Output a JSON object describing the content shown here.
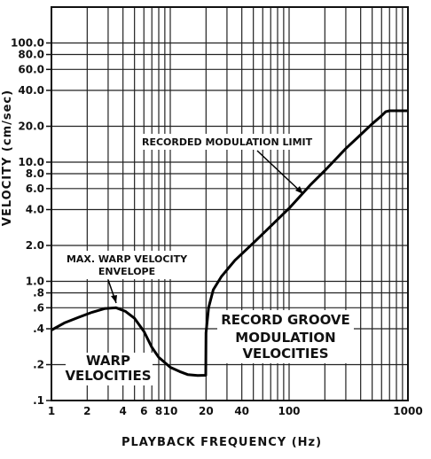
{
  "chart_data": {
    "type": "line",
    "xscale": "log",
    "yscale": "log",
    "xlim": [
      1,
      1000
    ],
    "ylim": [
      0.1,
      200
    ],
    "grid": true,
    "xlabel": "PLAYBACK FREQUENCY (Hz)",
    "ylabel": "VELOCITY (cm/sec)",
    "x_ticks": [
      1,
      2,
      4,
      6,
      8,
      10,
      20,
      40,
      100,
      1000
    ],
    "x_tick_labels": [
      "1",
      "2",
      "4",
      "6",
      "8",
      "10",
      "20",
      "40",
      "100",
      "1000"
    ],
    "y_ticks": [
      0.1,
      0.2,
      0.4,
      0.6,
      0.8,
      1.0,
      2.0,
      4.0,
      6.0,
      8.0,
      10.0,
      20.0,
      40.0,
      60.0,
      80.0,
      100.0
    ],
    "y_tick_labels": [
      ".1",
      ".2",
      ".4",
      ".6",
      ".8",
      "1.0",
      "2.0",
      "4.0",
      "6.0",
      "8.0",
      "10.0",
      "20.0",
      "40.0",
      "60.0",
      "80.0",
      "100.0"
    ],
    "series": [
      {
        "points": [
          [
            1,
            0.39
          ],
          [
            1.3,
            0.45
          ],
          [
            1.7,
            0.5
          ],
          [
            2.2,
            0.55
          ],
          [
            2.8,
            0.59
          ],
          [
            3.5,
            0.6
          ],
          [
            4.2,
            0.56
          ],
          [
            5,
            0.49
          ],
          [
            6,
            0.38
          ],
          [
            7,
            0.28
          ],
          [
            8,
            0.23
          ],
          [
            10,
            0.19
          ],
          [
            12,
            0.175
          ],
          [
            14,
            0.165
          ],
          [
            17,
            0.162
          ],
          [
            19.9,
            0.163
          ],
          [
            20,
            0.37
          ],
          [
            21,
            0.6
          ],
          [
            23,
            0.85
          ],
          [
            27,
            1.1
          ],
          [
            35,
            1.5
          ],
          [
            50,
            2.1
          ],
          [
            70,
            2.9
          ],
          [
            100,
            4.1
          ],
          [
            150,
            6.4
          ],
          [
            200,
            8.5
          ],
          [
            300,
            13
          ],
          [
            400,
            17
          ],
          [
            500,
            21
          ],
          [
            600,
            24.5
          ],
          [
            650,
            26.5
          ],
          [
            700,
            27
          ],
          [
            1000,
            27
          ]
        ]
      }
    ],
    "annotations": [
      {
        "text": "RECORDED MODULATION LIMIT"
      },
      {
        "text": "MAX. WARP VELOCITY"
      },
      {
        "text": "ENVELOPE"
      },
      {
        "text": "RECORD GROOVE"
      },
      {
        "text": "MODULATION"
      },
      {
        "text": "VELOCITIES"
      },
      {
        "text": "WARP"
      },
      {
        "text": "VELOCITIES"
      }
    ]
  }
}
